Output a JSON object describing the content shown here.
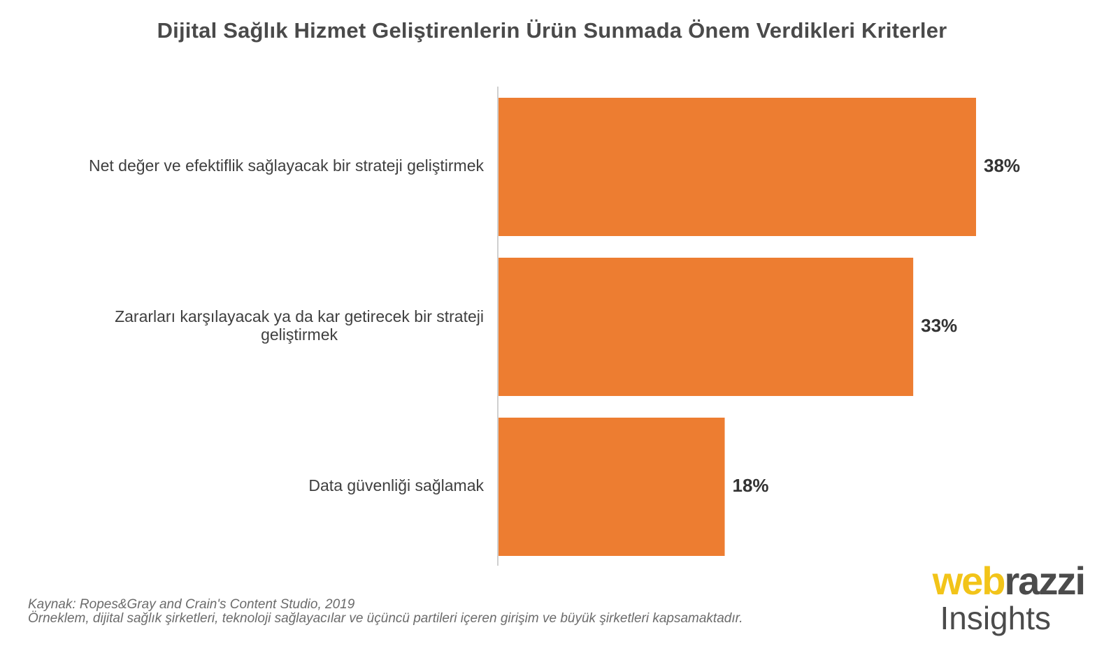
{
  "chart_data": {
    "type": "bar",
    "orientation": "horizontal",
    "title": "Dijital Sağlık Hizmet Geliştirenlerin Ürün Sunmada Önem Verdikleri Kriterler",
    "categories": [
      [
        "Net değer ve efektiflik sağlayacak bir strateji geliştirmek"
      ],
      [
        "Zararları karşılayacak ya da kar getirecek bir strateji",
        "geliştirmek"
      ],
      [
        "Data güvenliği sağlamak"
      ]
    ],
    "values": [
      38,
      33,
      18
    ],
    "value_labels": [
      "38%",
      "33%",
      "18%"
    ],
    "xlim": [
      0,
      40
    ],
    "bar_color": "#ed7d31",
    "grid": false,
    "legend": "none"
  },
  "footer": {
    "source": "Kaynak: Ropes&Gray and Crain's Content Studio, 2019",
    "note": "Örneklem, dijital sağlık şirketleri, teknoloji sağlayacılar ve üçüncü partileri içeren girişim ve büyük şirketleri kapsamaktadır."
  },
  "logo": {
    "part1": "web",
    "part2": "razzi",
    "subtitle": "Insights",
    "color_primary": "#f2c419",
    "color_secondary": "#4b4b4b"
  }
}
